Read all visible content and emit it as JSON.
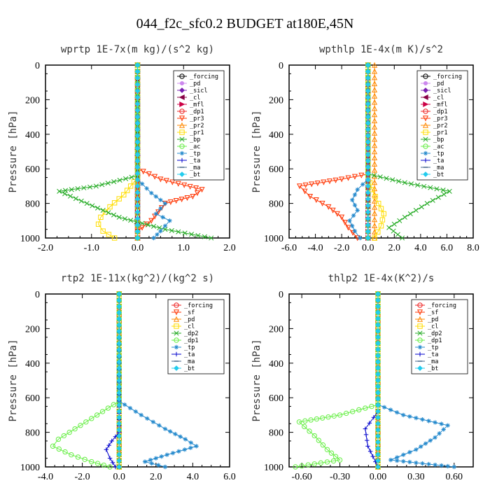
{
  "figure": {
    "title": "044_f2c_sfc0.2  BUDGET at180E,45N"
  },
  "chart_data": [
    {
      "type": "line",
      "title": "wprtp  1E-7x(m kg)/(s^2 kg)",
      "ylabel": "Pressure [hPa]",
      "xlim": [
        -2.0,
        2.0
      ],
      "ylim": [
        1000,
        0
      ],
      "xticks": [
        -2.0,
        -1.0,
        0.0,
        1.0,
        2.0
      ],
      "xticklabels": [
        "-2.0",
        "-1.0",
        "0.0",
        "1.0",
        "2.0"
      ],
      "yticks": [
        0,
        200,
        400,
        600,
        800,
        1000
      ],
      "yticklabels": [
        "0",
        "200",
        "400",
        "600",
        "800",
        "1000"
      ],
      "grid": false,
      "legend_position": "top-right",
      "series": [
        {
          "name": "_forcing",
          "color": "#000000",
          "marker": "circle",
          "x": [
            0,
            0,
            0,
            0,
            0,
            0
          ],
          "y": [
            0,
            200,
            400,
            600,
            800,
            1000
          ]
        },
        {
          "name": "_pd",
          "color": "#cc88ee",
          "marker": "dot",
          "x": [
            0,
            0,
            0,
            0
          ],
          "y": [
            0,
            300,
            600,
            1000
          ]
        },
        {
          "name": "_sicl",
          "color": "#7a1fb0",
          "marker": "diamond",
          "x": [
            0,
            0,
            0,
            0
          ],
          "y": [
            0,
            300,
            600,
            1000
          ]
        },
        {
          "name": "_cl",
          "color": "#880044",
          "marker": "tri-left",
          "x": [
            0,
            0,
            0,
            0
          ],
          "y": [
            0,
            300,
            600,
            1000
          ]
        },
        {
          "name": "_mfl",
          "color": "#cc0044",
          "marker": "tri-right",
          "x": [
            0,
            0,
            0,
            0
          ],
          "y": [
            0,
            300,
            600,
            1000
          ]
        },
        {
          "name": "_dp1",
          "color": "#ee2222",
          "marker": "circle",
          "x": [
            0,
            0,
            0,
            0
          ],
          "y": [
            0,
            300,
            600,
            1000
          ]
        },
        {
          "name": "_pr3",
          "color": "#ff3300",
          "marker": "tri-down",
          "x": [
            0,
            0.0,
            0.5,
            1.4,
            1.2,
            0.6,
            0.3,
            0.0,
            0.0
          ],
          "y": [
            0,
            600,
            660,
            720,
            760,
            800,
            900,
            960,
            1000
          ]
        },
        {
          "name": "_pr2",
          "color": "#ff8800",
          "marker": "tri-up",
          "x": [
            0,
            0,
            0
          ],
          "y": [
            0,
            500,
            1000
          ]
        },
        {
          "name": "_pr1",
          "color": "#ffdd00",
          "marker": "square",
          "x": [
            0,
            0.0,
            -0.3,
            -0.6,
            -0.8,
            -0.85,
            -0.75,
            -0.5
          ],
          "y": [
            0,
            650,
            750,
            820,
            880,
            920,
            960,
            1000
          ]
        },
        {
          "name": "_bp",
          "color": "#22aa22",
          "marker": "x",
          "x": [
            0,
            0.0,
            -0.9,
            -1.7,
            -1.1,
            -0.4,
            0.6,
            1.6
          ],
          "y": [
            0,
            640,
            700,
            730,
            800,
            880,
            950,
            1000
          ]
        },
        {
          "name": "_ac",
          "color": "#66ee44",
          "marker": "circle",
          "x": [
            0,
            0,
            0
          ],
          "y": [
            0,
            500,
            1000
          ]
        },
        {
          "name": "_tp",
          "color": "#2288cc",
          "marker": "star",
          "x": [
            0,
            0.0,
            0.3,
            0.6,
            0.4,
            0.7,
            0.5,
            0.35
          ],
          "y": [
            0,
            660,
            740,
            800,
            860,
            900,
            960,
            1000
          ]
        },
        {
          "name": "_ta",
          "color": "#0000cc",
          "marker": "plus",
          "x": [
            0,
            0,
            0,
            0
          ],
          "y": [
            0,
            300,
            700,
            1000
          ]
        },
        {
          "name": "_ma",
          "color": "#446688",
          "marker": "dash",
          "x": [
            0,
            0,
            0,
            0
          ],
          "y": [
            0,
            300,
            700,
            1000
          ]
        },
        {
          "name": "_bt",
          "color": "#22ccee",
          "marker": "diamond",
          "x": [
            0,
            0,
            0,
            0
          ],
          "y": [
            0,
            300,
            700,
            1000
          ]
        }
      ]
    },
    {
      "type": "line",
      "title": "wpthlp  1E-4x(m K)/s^2",
      "ylabel": "Pressure [hPa]",
      "xlim": [
        -6.0,
        8.0
      ],
      "ylim": [
        1000,
        0
      ],
      "xticks": [
        -6.0,
        -4.0,
        -2.0,
        0.0,
        2.0,
        4.0,
        6.0,
        8.0
      ],
      "xticklabels": [
        "-6.0",
        "-4.0",
        "-2.0",
        "0.0",
        "2.0",
        "4.0",
        "6.0",
        "8.0"
      ],
      "yticks": [
        0,
        200,
        400,
        600,
        800,
        1000
      ],
      "yticklabels": [
        "0",
        "200",
        "400",
        "600",
        "800",
        "1000"
      ],
      "grid": false,
      "legend_position": "top-right",
      "series": [
        {
          "name": "_forcing",
          "color": "#000000",
          "marker": "circle",
          "x": [
            0,
            0,
            0,
            0
          ],
          "y": [
            0,
            300,
            600,
            1000
          ]
        },
        {
          "name": "_pd",
          "color": "#cc88ee",
          "marker": "dot",
          "x": [
            0,
            0,
            0,
            0
          ],
          "y": [
            0,
            300,
            600,
            1000
          ]
        },
        {
          "name": "_sicl",
          "color": "#7a1fb0",
          "marker": "diamond",
          "x": [
            0,
            0,
            0,
            0
          ],
          "y": [
            0,
            300,
            600,
            1000
          ]
        },
        {
          "name": "_cl",
          "color": "#880044",
          "marker": "tri-left",
          "x": [
            0,
            0,
            0,
            0
          ],
          "y": [
            0,
            300,
            600,
            1000
          ]
        },
        {
          "name": "_mfl",
          "color": "#cc0044",
          "marker": "tri-right",
          "x": [
            0,
            0,
            0,
            0
          ],
          "y": [
            0,
            300,
            600,
            1000
          ]
        },
        {
          "name": "_dp1",
          "color": "#ee2222",
          "marker": "circle",
          "x": [
            0,
            0,
            0,
            0
          ],
          "y": [
            0,
            300,
            600,
            1000
          ]
        },
        {
          "name": "_pr3",
          "color": "#ff3300",
          "marker": "tri-down",
          "x": [
            0,
            0.0,
            -2.0,
            -5.2,
            -4.4,
            -3.0,
            -2.0,
            -1.5,
            -0.8
          ],
          "y": [
            0,
            630,
            660,
            700,
            760,
            820,
            880,
            940,
            1000
          ]
        },
        {
          "name": "_pr2",
          "color": "#ff8800",
          "marker": "tri-up",
          "x": [
            0.5,
            0.5,
            0.5
          ],
          "y": [
            0,
            500,
            1000
          ]
        },
        {
          "name": "_pr1",
          "color": "#ffdd00",
          "marker": "square",
          "x": [
            0,
            0.0,
            0.3,
            0.8,
            1.2,
            1.0,
            0.5
          ],
          "y": [
            0,
            640,
            720,
            800,
            860,
            930,
            1000
          ]
        },
        {
          "name": "_bp",
          "color": "#22aa22",
          "marker": "x",
          "x": [
            0,
            0.0,
            2.8,
            6.2,
            4.5,
            2.8,
            1.6,
            2.6
          ],
          "y": [
            0,
            630,
            680,
            730,
            800,
            880,
            940,
            1000
          ]
        },
        {
          "name": "_ac",
          "color": "#66ee44",
          "marker": "circle",
          "x": [
            0,
            0,
            0
          ],
          "y": [
            0,
            500,
            1000
          ]
        },
        {
          "name": "_tp",
          "color": "#2288cc",
          "marker": "star",
          "x": [
            0,
            0.0,
            -0.8,
            -1.2,
            -0.8,
            -1.4,
            -1.0,
            -0.6
          ],
          "y": [
            0,
            660,
            720,
            780,
            840,
            900,
            960,
            1000
          ]
        },
        {
          "name": "_ta",
          "color": "#0000cc",
          "marker": "plus",
          "x": [
            0,
            0,
            0,
            0
          ],
          "y": [
            0,
            300,
            700,
            1000
          ]
        },
        {
          "name": "_ma",
          "color": "#446688",
          "marker": "dash",
          "x": [
            0,
            0,
            0,
            0
          ],
          "y": [
            0,
            300,
            700,
            1000
          ]
        },
        {
          "name": "_bt",
          "color": "#22ccee",
          "marker": "diamond",
          "x": [
            0,
            0,
            0,
            0
          ],
          "y": [
            0,
            300,
            700,
            1000
          ]
        }
      ]
    },
    {
      "type": "line",
      "title": "rtp2  1E-11x(kg^2)/(kg^2 s)",
      "ylabel": "Pressure [hPa]",
      "xlim": [
        -4.0,
        6.0
      ],
      "ylim": [
        1000,
        0
      ],
      "xticks": [
        -4.0,
        -2.0,
        0.0,
        2.0,
        4.0,
        6.0
      ],
      "xticklabels": [
        "-4.0",
        "-2.0",
        "0.0",
        "2.0",
        "4.0",
        "6.0"
      ],
      "yticks": [
        0,
        200,
        400,
        600,
        800,
        1000
      ],
      "yticklabels": [
        "0",
        "200",
        "400",
        "600",
        "800",
        "1000"
      ],
      "grid": false,
      "legend_position": "top-right",
      "series": [
        {
          "name": "_forcing",
          "color": "#ee2222",
          "marker": "circle",
          "x": [
            0,
            0,
            0,
            0,
            0,
            0
          ],
          "y": [
            0,
            200,
            400,
            600,
            800,
            1000
          ]
        },
        {
          "name": "_sf",
          "color": "#ff3300",
          "marker": "tri-down",
          "x": [
            0,
            0,
            0
          ],
          "y": [
            0,
            500,
            1000
          ]
        },
        {
          "name": "_pd",
          "color": "#ff8800",
          "marker": "tri-up",
          "x": [
            0,
            0,
            0
          ],
          "y": [
            0,
            500,
            1000
          ]
        },
        {
          "name": "_cl",
          "color": "#ffdd00",
          "marker": "square",
          "x": [
            0,
            0,
            0
          ],
          "y": [
            0,
            500,
            1000
          ]
        },
        {
          "name": "_dp2",
          "color": "#22aa22",
          "marker": "x",
          "x": [
            0,
            0,
            0
          ],
          "y": [
            0,
            500,
            1000
          ]
        },
        {
          "name": "_dp1",
          "color": "#66ee44",
          "marker": "circle",
          "x": [
            0,
            0.0,
            -1.2,
            -2.4,
            -3.3,
            -3.6,
            -2.6,
            -1.5,
            -0.5
          ],
          "y": [
            0,
            620,
            700,
            780,
            840,
            880,
            930,
            970,
            1000
          ]
        },
        {
          "name": "_tp",
          "color": "#2288cc",
          "marker": "star",
          "x": [
            0,
            0.0,
            1.2,
            2.5,
            3.6,
            4.2,
            2.6,
            1.4,
            2.5
          ],
          "y": [
            0,
            620,
            700,
            780,
            840,
            880,
            930,
            970,
            1000
          ]
        },
        {
          "name": "_ta",
          "color": "#0000cc",
          "marker": "plus",
          "x": [
            0,
            0.0,
            -0.4,
            -0.7,
            -0.5,
            -0.2
          ],
          "y": [
            0,
            800,
            850,
            900,
            950,
            1000
          ]
        },
        {
          "name": "_ma",
          "color": "#446688",
          "marker": "dash",
          "x": [
            0,
            0,
            0
          ],
          "y": [
            0,
            500,
            1000
          ]
        },
        {
          "name": "_bt",
          "color": "#22ccee",
          "marker": "diamond",
          "x": [
            0,
            0,
            0
          ],
          "y": [
            0,
            500,
            1000
          ]
        }
      ]
    },
    {
      "type": "line",
      "title": "thlp2  1E-4x(K^2)/s",
      "ylabel": "Pressure [hPa]",
      "xlim": [
        -0.7,
        0.75
      ],
      "ylim": [
        1000,
        0
      ],
      "xticks": [
        -0.6,
        -0.3,
        0.0,
        0.3,
        0.6
      ],
      "xticklabels": [
        "-0.60",
        "-0.30",
        "0.00",
        "0.30",
        "0.60"
      ],
      "yticks": [
        0,
        200,
        400,
        600,
        800,
        1000
      ],
      "yticklabels": [
        "0",
        "200",
        "400",
        "600",
        "800",
        "1000"
      ],
      "grid": false,
      "legend_position": "top-right",
      "series": [
        {
          "name": "_forcing",
          "color": "#ee2222",
          "marker": "circle",
          "x": [
            0,
            0,
            0,
            0,
            0,
            0
          ],
          "y": [
            0,
            200,
            400,
            600,
            800,
            1000
          ]
        },
        {
          "name": "_sf",
          "color": "#ff3300",
          "marker": "tri-down",
          "x": [
            0,
            0,
            0
          ],
          "y": [
            0,
            500,
            1000
          ]
        },
        {
          "name": "_pd",
          "color": "#ff8800",
          "marker": "tri-up",
          "x": [
            0,
            0,
            0
          ],
          "y": [
            0,
            500,
            1000
          ]
        },
        {
          "name": "_cl",
          "color": "#ffdd00",
          "marker": "square",
          "x": [
            0,
            0,
            0
          ],
          "y": [
            0,
            500,
            1000
          ]
        },
        {
          "name": "_dp2",
          "color": "#22aa22",
          "marker": "x",
          "x": [
            0,
            0,
            0
          ],
          "y": [
            0,
            500,
            1000
          ]
        },
        {
          "name": "_dp1",
          "color": "#66ee44",
          "marker": "circle",
          "x": [
            0,
            0.0,
            -0.3,
            -0.62,
            -0.5,
            -0.4,
            -0.3,
            -0.65
          ],
          "y": [
            0,
            640,
            700,
            740,
            820,
            900,
            960,
            1000
          ]
        },
        {
          "name": "_tp",
          "color": "#2288cc",
          "marker": "star",
          "x": [
            0,
            0.0,
            0.2,
            0.55,
            0.45,
            0.3,
            0.1,
            0.6
          ],
          "y": [
            0,
            640,
            700,
            760,
            830,
            900,
            960,
            1000
          ]
        },
        {
          "name": "_ta",
          "color": "#0000cc",
          "marker": "plus",
          "x": [
            0,
            0.0,
            -0.1,
            -0.08,
            0.0
          ],
          "y": [
            0,
            680,
            780,
            880,
            1000
          ]
        },
        {
          "name": "_ma",
          "color": "#446688",
          "marker": "dash",
          "x": [
            0,
            0,
            0
          ],
          "y": [
            0,
            500,
            1000
          ]
        },
        {
          "name": "_bt",
          "color": "#22ccee",
          "marker": "diamond",
          "x": [
            0,
            0,
            0
          ],
          "y": [
            0,
            500,
            1000
          ]
        }
      ]
    }
  ]
}
